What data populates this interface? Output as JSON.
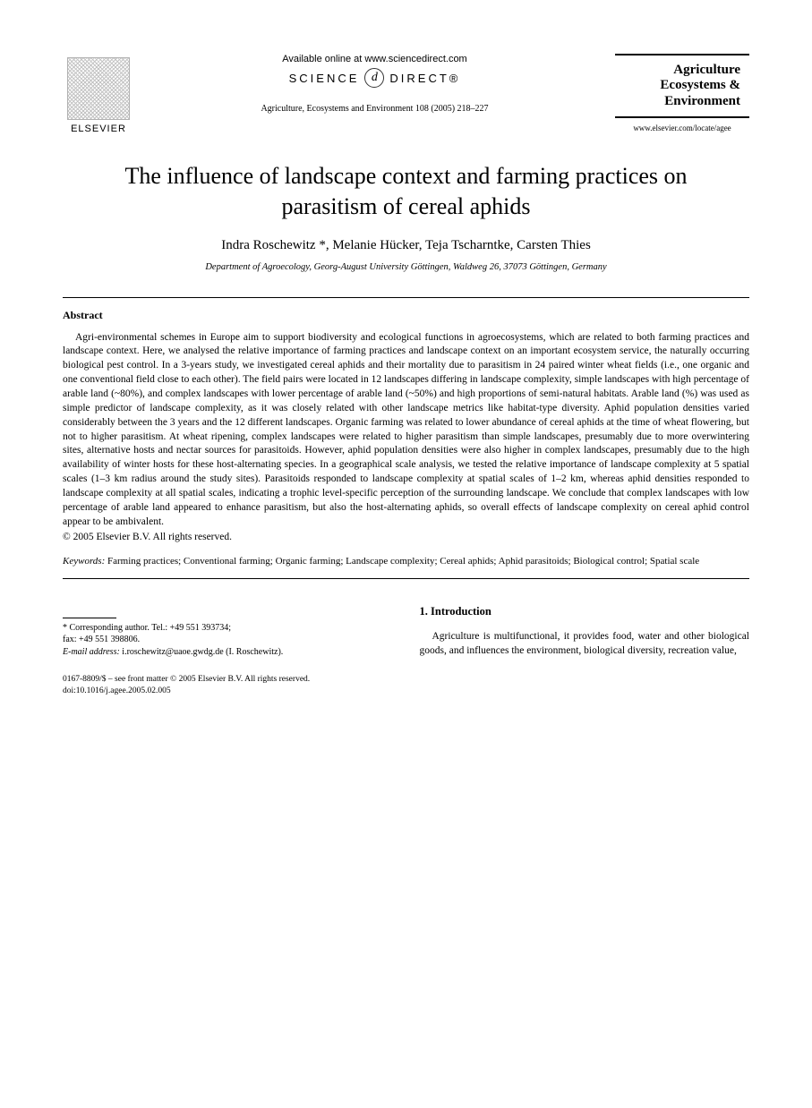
{
  "header": {
    "publisher_name": "ELSEVIER",
    "available_text": "Available online at www.sciencedirect.com",
    "science_direct_left": "SCIENCE",
    "science_direct_glyph": "d",
    "science_direct_right": "DIRECT®",
    "citation": "Agriculture, Ecosystems and Environment 108 (2005) 218–227",
    "journal_line1": "Agriculture",
    "journal_line2": "Ecosystems &",
    "journal_line3": "Environment",
    "journal_url": "www.elsevier.com/locate/agee"
  },
  "title": "The influence of landscape context and farming practices on parasitism of cereal aphids",
  "authors": "Indra Roschewitz *, Melanie Hücker, Teja Tscharntke, Carsten Thies",
  "affiliation": "Department of Agroecology, Georg-August University Göttingen, Waldweg 26, 37073 Göttingen, Germany",
  "abstract": {
    "heading": "Abstract",
    "text": "Agri-environmental schemes in Europe aim to support biodiversity and ecological functions in agroecosystems, which are related to both farming practices and landscape context. Here, we analysed the relative importance of farming practices and landscape context on an important ecosystem service, the naturally occurring biological pest control. In a 3-years study, we investigated cereal aphids and their mortality due to parasitism in 24 paired winter wheat fields (i.e., one organic and one conventional field close to each other). The field pairs were located in 12 landscapes differing in landscape complexity, simple landscapes with high percentage of arable land (~80%), and complex landscapes with lower percentage of arable land (~50%) and high proportions of semi-natural habitats. Arable land (%) was used as simple predictor of landscape complexity, as it was closely related with other landscape metrics like habitat-type diversity. Aphid population densities varied considerably between the 3 years and the 12 different landscapes. Organic farming was related to lower abundance of cereal aphids at the time of wheat flowering, but not to higher parasitism. At wheat ripening, complex landscapes were related to higher parasitism than simple landscapes, presumably due to more overwintering sites, alternative hosts and nectar sources for parasitoids. However, aphid population densities were also higher in complex landscapes, presumably due to the high availability of winter hosts for these host-alternating species. In a geographical scale analysis, we tested the relative importance of landscape complexity at 5 spatial scales (1–3 km radius around the study sites). Parasitoids responded to landscape complexity at spatial scales of 1–2 km, whereas aphid densities responded to landscape complexity at all spatial scales, indicating a trophic level-specific perception of the surrounding landscape. We conclude that complex landscapes with low percentage of arable land appeared to enhance parasitism, but also the host-alternating aphids, so overall effects of landscape complexity on cereal aphid control appear to be ambivalent.",
    "copyright": "© 2005 Elsevier B.V. All rights reserved."
  },
  "keywords": {
    "label": "Keywords:",
    "text": " Farming practices; Conventional farming; Organic farming; Landscape complexity; Cereal aphids; Aphid parasitoids; Biological control; Spatial scale"
  },
  "footnote": {
    "corr_label": "* Corresponding author. Tel.: +49 551 393734;",
    "fax": "fax: +49 551 398806.",
    "email_label": "E-mail address:",
    "email_value": " i.roschewitz@uaoe.gwdg.de (I. Roschewitz)."
  },
  "introduction": {
    "heading": "1. Introduction",
    "text": "Agriculture is multifunctional, it provides food, water and other biological goods, and influences the environment, biological diversity, recreation value,"
  },
  "footer": {
    "line1": "0167-8809/$ – see front matter © 2005 Elsevier B.V. All rights reserved.",
    "line2": "doi:10.1016/j.agee.2005.02.005"
  },
  "colors": {
    "text": "#000000",
    "background": "#ffffff",
    "rule": "#000000"
  }
}
